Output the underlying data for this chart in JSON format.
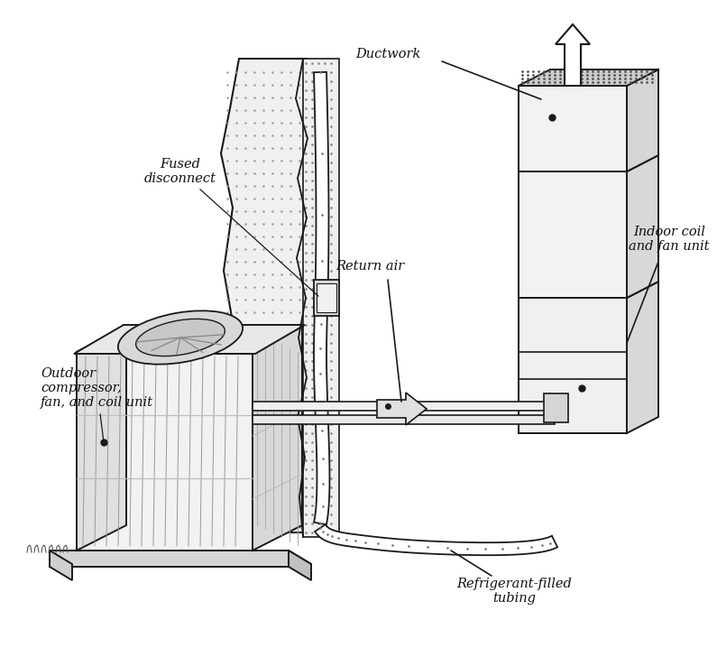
{
  "bg_color": "#ffffff",
  "line_color": "#1a1a1a",
  "labels": {
    "fused_disconnect": "Fused\ndisconnect",
    "outdoor_unit": "Outdoor\ncompressor,\nfan, and coil unit",
    "ductwork": "Ductwork",
    "return_air": "Return air",
    "indoor_coil": "Indoor coil\nand fan unit",
    "refrigerant": "Refrigerant-filled\ntubing"
  },
  "label_fontsize": 10.5,
  "figsize": [
    7.95,
    7.28
  ],
  "dpi": 100
}
